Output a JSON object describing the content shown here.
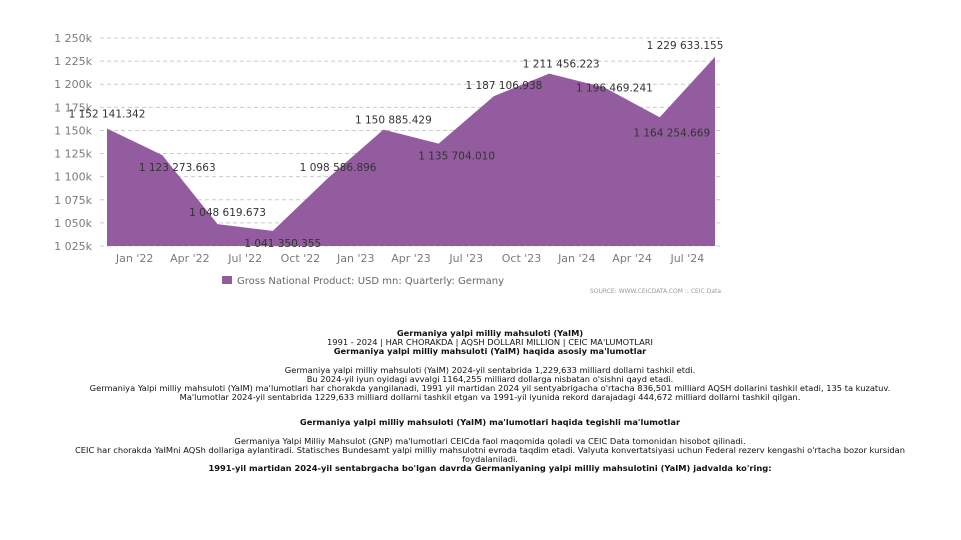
{
  "chart_data": {
    "type": "area",
    "x": [
      "2021-12",
      "2022-03",
      "2022-06",
      "2022-09",
      "2022-12",
      "2023-03",
      "2023-06",
      "2023-09",
      "2023-12",
      "2024-03",
      "2024-06",
      "2024-09"
    ],
    "tick_labels": [
      "Jan '22",
      "Apr '22",
      "Jul '22",
      "Oct '22",
      "Jan '23",
      "Apr '23",
      "Jul '23",
      "Oct '23",
      "Jan '24",
      "Apr '24",
      "Jul '24"
    ],
    "y_tick_labels": [
      "1 025k",
      "1 050k",
      "1 075k",
      "1 100k",
      "1 125k",
      "1 150k",
      "1 175k",
      "1 200k",
      "1 225k",
      "1 250k"
    ],
    "series": [
      {
        "name": "Gross National Product: USD mn: Quarterly: Germany",
        "values": [
          1152141.342,
          1123273.663,
          1048619.673,
          1041350.355,
          1098586.896,
          1150885.429,
          1135704.01,
          1187106.938,
          1211456.223,
          1196469.241,
          1164254.669,
          1229633.155
        ],
        "value_labels": [
          "1 152 141.342",
          "1 123 273.663",
          "1 048 619.673",
          "1 041 350.355",
          "1 098 586.896",
          "1 150 885.429",
          "1 135 704.010",
          "1 187 106.938",
          "1 211 456.223",
          "1 196 469.241",
          "1 164 254.669",
          "1 229 633.155"
        ],
        "color": "#935c9e"
      }
    ],
    "ylim": [
      1025000,
      1250000
    ],
    "grid": true,
    "legend": "bottom-left",
    "source": "SOURCE: WWW.CEICDATA.COM :: CEIC Data"
  },
  "text": {
    "title": "Germaniya yalpi milliy mahsuloti (YaIM)",
    "meta": "1991 - 2024 | HAR CHORAKDA | AQSH DOLLARI MILLION | CEIC MA'LUMOTLARI",
    "heading1": "Germaniya yalpi milliy mahsuloti (YaIM) haqida asosiy ma'lumotlar",
    "p1": "Germaniya yalpi milliy mahsuloti (YaIM) 2024-yil sentabrida 1,229,633 milliard dollarni tashkil etdi.",
    "p2": "Bu 2024-yil iyun oyidagi avvalgi 1164,255 milliard dollarga nisbatan o'sishni qayd etadi.",
    "p3": "Germaniya Yalpi milliy mahsuloti (YaIM) ma'lumotlari har chorakda yangilanadi, 1991 yil martidan 2024 yil sentyabrigacha o'rtacha 836,501 milliard AQSH dollarini tashkil etadi, 135 ta kuzatuv.",
    "p4": "Ma'lumotlar 2024-yil sentabrida 1229,633 milliard dollarni tashkil etgan va 1991-yil iyunida rekord darajadagi 444,672 milliard dollarni tashkil qilgan.",
    "heading2": "Germaniya yalpi milliy mahsuloti (YaIM) ma'lumotlari haqida tegishli ma'lumotlar",
    "p5": "Germaniya Yalpi Milliy Mahsulot (GNP) ma'lumotlari CEICda faol maqomida qoladi va CEIC Data tomonidan hisobot qilinadi.",
    "p6": "CEIC har chorakda YaIMni AQSh dollariga aylantiradi. Statisches Bundesamt yalpi milliy mahsulotni evroda taqdim etadi. Valyuta konvertatsiyasi uchun Federal rezerv kengashi o'rtacha bozor kursidan foydalaniladi.",
    "heading3": "1991-yil martidan 2024-yil sentabrgacha bo'lgan davrda Germaniyaning yalpi milliy mahsulotini (YaIM) jadvalda ko'ring:"
  }
}
